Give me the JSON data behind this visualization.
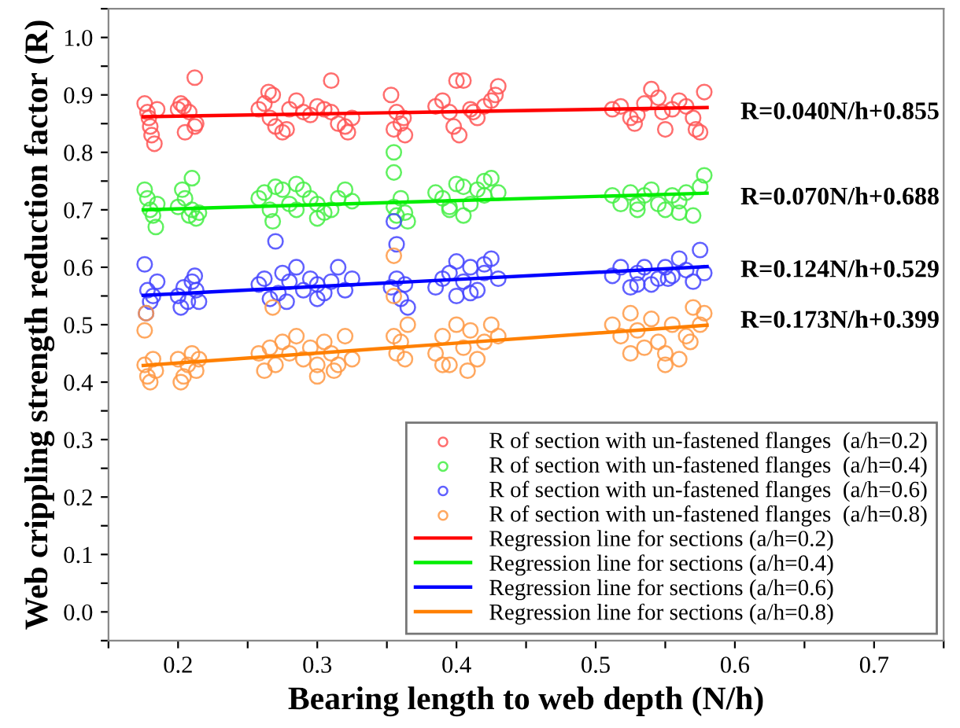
{
  "chart_data": {
    "type": "scatter",
    "xlabel": "Bearing length to web depth (N/h)",
    "ylabel": "Web crippling strength reduction factor (R)",
    "xlim": [
      0.15,
      0.75
    ],
    "ylim": [
      -0.05,
      1.05
    ],
    "xticks": [
      {
        "value": 0.15,
        "label": null
      },
      0.2,
      {
        "value": 0.25,
        "label": null
      },
      0.3,
      {
        "value": 0.35,
        "label": null
      },
      0.4,
      {
        "value": 0.45,
        "label": null
      },
      0.5,
      {
        "value": 0.55,
        "label": null
      },
      0.6,
      {
        "value": 0.65,
        "label": null
      },
      0.7,
      {
        "value": 0.75,
        "label": null
      }
    ],
    "yticks": [
      {
        "value": -0.05,
        "label": null
      },
      "0.0",
      {
        "value": 0.05,
        "label": null
      },
      0.1,
      {
        "value": 0.15,
        "label": null
      },
      0.2,
      {
        "value": 0.25,
        "label": null
      },
      0.3,
      {
        "value": 0.35,
        "label": null
      },
      0.4,
      {
        "value": 0.45,
        "label": null
      },
      0.5,
      {
        "value": 0.55,
        "label": null
      },
      0.6,
      {
        "value": 0.65,
        "label": null
      },
      0.7,
      {
        "value": 0.75,
        "label": null
      },
      0.8,
      {
        "value": 0.85,
        "label": null
      },
      0.9,
      {
        "value": 0.95,
        "label": null
      },
      "1.0",
      {
        "value": 1.05,
        "label": null
      }
    ],
    "grid": false,
    "legend": "bottom right",
    "line_style": "solid",
    "annotations": [
      "R=0.040N/h+0.855",
      "R=0.070N/h+0.688",
      "R=0.124N/h+0.529",
      "R=0.173N/h+0.399"
    ],
    "series": [
      {
        "marker": "circle",
        "name": "R of section with un-fastened flanges  (a/h=0.2)",
        "color": "#ff5555",
        "x": [
          0.176,
          0.178,
          0.18,
          0.181,
          0.183,
          0.185,
          0.179,
          0.2,
          0.204,
          0.208,
          0.212,
          0.205,
          0.213,
          0.202,
          0.212,
          0.258,
          0.262,
          0.266,
          0.27,
          0.268,
          0.275,
          0.28,
          0.285,
          0.29,
          0.295,
          0.3,
          0.305,
          0.31,
          0.315,
          0.32,
          0.325,
          0.265,
          0.278,
          0.31,
          0.322,
          0.353,
          0.357,
          0.36,
          0.363,
          0.355,
          0.362,
          0.385,
          0.39,
          0.395,
          0.4,
          0.405,
          0.41,
          0.415,
          0.42,
          0.425,
          0.43,
          0.398,
          0.402,
          0.412,
          0.428,
          0.512,
          0.518,
          0.525,
          0.53,
          0.535,
          0.54,
          0.545,
          0.55,
          0.555,
          0.56,
          0.565,
          0.57,
          0.575,
          0.578,
          0.528,
          0.548,
          0.572
        ],
        "values": [
          0.885,
          0.87,
          0.845,
          0.83,
          0.815,
          0.875,
          0.86,
          0.875,
          0.88,
          0.87,
          0.845,
          0.835,
          0.85,
          0.885,
          0.93,
          0.875,
          0.885,
          0.86,
          0.845,
          0.9,
          0.835,
          0.875,
          0.89,
          0.87,
          0.865,
          0.88,
          0.875,
          0.87,
          0.85,
          0.845,
          0.86,
          0.905,
          0.84,
          0.925,
          0.835,
          0.9,
          0.87,
          0.85,
          0.83,
          0.84,
          0.86,
          0.88,
          0.89,
          0.87,
          0.925,
          0.925,
          0.875,
          0.86,
          0.88,
          0.89,
          0.915,
          0.845,
          0.83,
          0.87,
          0.9,
          0.875,
          0.88,
          0.86,
          0.865,
          0.885,
          0.91,
          0.895,
          0.84,
          0.875,
          0.89,
          0.88,
          0.86,
          0.835,
          0.905,
          0.85,
          0.87,
          0.84
        ]
      },
      {
        "marker": "circle",
        "name": "R of section with un-fastened flanges  (a/h=0.4)",
        "color": "#44ee44",
        "x": [
          0.176,
          0.178,
          0.18,
          0.182,
          0.185,
          0.184,
          0.2,
          0.205,
          0.208,
          0.21,
          0.213,
          0.215,
          0.203,
          0.21,
          0.258,
          0.262,
          0.266,
          0.27,
          0.275,
          0.28,
          0.285,
          0.29,
          0.295,
          0.3,
          0.305,
          0.31,
          0.315,
          0.32,
          0.325,
          0.268,
          0.285,
          0.3,
          0.355,
          0.357,
          0.36,
          0.363,
          0.365,
          0.355,
          0.355,
          0.385,
          0.39,
          0.395,
          0.4,
          0.405,
          0.41,
          0.415,
          0.42,
          0.425,
          0.43,
          0.395,
          0.405,
          0.42,
          0.512,
          0.518,
          0.525,
          0.53,
          0.535,
          0.54,
          0.545,
          0.55,
          0.555,
          0.56,
          0.565,
          0.57,
          0.575,
          0.578,
          0.53,
          0.56
        ],
        "values": [
          0.735,
          0.72,
          0.7,
          0.69,
          0.71,
          0.67,
          0.705,
          0.72,
          0.69,
          0.7,
          0.685,
          0.695,
          0.735,
          0.755,
          0.72,
          0.73,
          0.7,
          0.74,
          0.735,
          0.71,
          0.7,
          0.735,
          0.72,
          0.71,
          0.695,
          0.7,
          0.72,
          0.735,
          0.715,
          0.68,
          0.745,
          0.685,
          0.705,
          0.69,
          0.72,
          0.695,
          0.68,
          0.8,
          0.765,
          0.73,
          0.72,
          0.7,
          0.745,
          0.74,
          0.71,
          0.735,
          0.725,
          0.755,
          0.73,
          0.705,
          0.69,
          0.75,
          0.725,
          0.71,
          0.73,
          0.7,
          0.725,
          0.735,
          0.71,
          0.7,
          0.725,
          0.715,
          0.73,
          0.69,
          0.74,
          0.76,
          0.71,
          0.695
        ]
      },
      {
        "marker": "circle",
        "name": "R of section with un-fastened flanges  (a/h=0.6)",
        "color": "#4444ff",
        "x": [
          0.176,
          0.178,
          0.18,
          0.182,
          0.177,
          0.185,
          0.2,
          0.204,
          0.207,
          0.21,
          0.213,
          0.202,
          0.212,
          0.215,
          0.258,
          0.262,
          0.266,
          0.27,
          0.272,
          0.275,
          0.28,
          0.285,
          0.29,
          0.295,
          0.3,
          0.305,
          0.31,
          0.315,
          0.32,
          0.325,
          0.278,
          0.3,
          0.353,
          0.357,
          0.36,
          0.363,
          0.355,
          0.357,
          0.365,
          0.385,
          0.39,
          0.395,
          0.4,
          0.405,
          0.41,
          0.415,
          0.42,
          0.425,
          0.43,
          0.4,
          0.41,
          0.42,
          0.512,
          0.518,
          0.525,
          0.53,
          0.535,
          0.54,
          0.545,
          0.55,
          0.555,
          0.56,
          0.565,
          0.57,
          0.575,
          0.578,
          0.53,
          0.552
        ],
        "values": [
          0.605,
          0.56,
          0.54,
          0.55,
          0.52,
          0.575,
          0.55,
          0.565,
          0.54,
          0.575,
          0.56,
          0.53,
          0.585,
          0.54,
          0.57,
          0.58,
          0.545,
          0.645,
          0.555,
          0.59,
          0.575,
          0.6,
          0.56,
          0.58,
          0.57,
          0.555,
          0.575,
          0.6,
          0.56,
          0.58,
          0.54,
          0.545,
          0.565,
          0.58,
          0.545,
          0.57,
          0.68,
          0.64,
          0.53,
          0.565,
          0.58,
          0.59,
          0.61,
          0.575,
          0.6,
          0.56,
          0.59,
          0.615,
          0.58,
          0.55,
          0.555,
          0.605,
          0.585,
          0.6,
          0.565,
          0.59,
          0.6,
          0.57,
          0.58,
          0.6,
          0.585,
          0.615,
          0.595,
          0.575,
          0.63,
          0.59,
          0.57,
          0.58
        ]
      },
      {
        "marker": "circle",
        "name": "R of section with un-fastened flanges  (a/h=0.8)",
        "color": "#ff9944",
        "x": [
          0.176,
          0.178,
          0.18,
          0.182,
          0.184,
          0.177,
          0.176,
          0.2,
          0.204,
          0.207,
          0.21,
          0.213,
          0.215,
          0.202,
          0.258,
          0.262,
          0.266,
          0.27,
          0.275,
          0.28,
          0.285,
          0.29,
          0.295,
          0.3,
          0.305,
          0.31,
          0.315,
          0.32,
          0.325,
          0.268,
          0.3,
          0.312,
          0.355,
          0.357,
          0.36,
          0.363,
          0.365,
          0.355,
          0.355,
          0.385,
          0.39,
          0.395,
          0.4,
          0.405,
          0.41,
          0.415,
          0.42,
          0.425,
          0.43,
          0.39,
          0.408,
          0.512,
          0.518,
          0.525,
          0.53,
          0.535,
          0.54,
          0.545,
          0.55,
          0.555,
          0.56,
          0.565,
          0.57,
          0.575,
          0.578,
          0.525,
          0.55,
          0.568
        ],
        "values": [
          0.43,
          0.41,
          0.4,
          0.44,
          0.42,
          0.52,
          0.49,
          0.44,
          0.41,
          0.43,
          0.45,
          0.42,
          0.44,
          0.4,
          0.45,
          0.42,
          0.46,
          0.43,
          0.47,
          0.45,
          0.48,
          0.44,
          0.46,
          0.43,
          0.47,
          0.45,
          0.43,
          0.48,
          0.44,
          0.53,
          0.41,
          0.42,
          0.48,
          0.45,
          0.47,
          0.44,
          0.5,
          0.62,
          0.55,
          0.45,
          0.48,
          0.43,
          0.5,
          0.46,
          0.49,
          0.44,
          0.47,
          0.5,
          0.48,
          0.43,
          0.42,
          0.5,
          0.48,
          0.52,
          0.49,
          0.46,
          0.51,
          0.47,
          0.45,
          0.5,
          0.44,
          0.48,
          0.53,
          0.5,
          0.52,
          0.45,
          0.43,
          0.47
        ]
      },
      {
        "type": "line",
        "name": "Regression line for sections (a/h=0.2)",
        "color": "#ff0000",
        "x": [
          0.175,
          0.58
        ],
        "values": [
          0.862,
          0.878
        ]
      },
      {
        "type": "line",
        "name": "Regression line for sections (a/h=0.4)",
        "color": "#00ee00",
        "x": [
          0.175,
          0.58
        ],
        "values": [
          0.7,
          0.729
        ]
      },
      {
        "type": "line",
        "name": "Regression line for sections (a/h=0.6)",
        "color": "#0000ff",
        "x": [
          0.175,
          0.58
        ],
        "values": [
          0.551,
          0.601
        ]
      },
      {
        "type": "line",
        "name": "Regression line for sections (a/h=0.8)",
        "color": "#ff8000",
        "x": [
          0.175,
          0.58
        ],
        "values": [
          0.429,
          0.499
        ]
      }
    ]
  }
}
